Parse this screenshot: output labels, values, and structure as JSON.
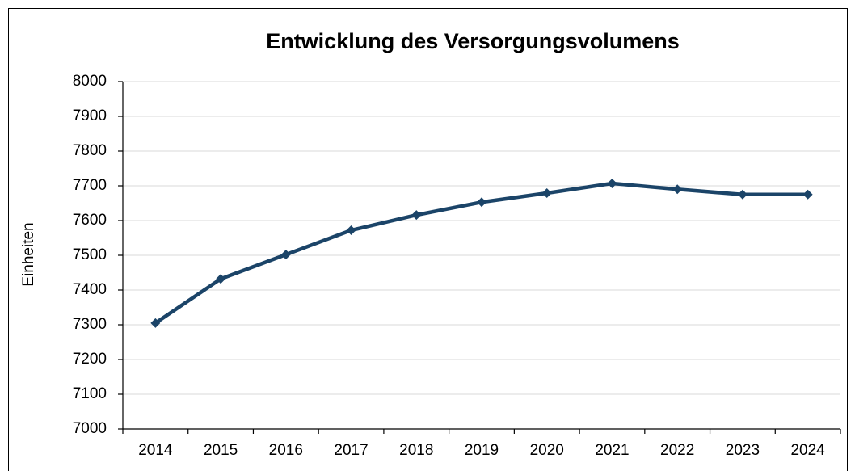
{
  "chart_data": {
    "type": "line",
    "title": "Entwicklung des Versorgungsvolumens",
    "ylabel": "Einheiten",
    "categories": [
      "2014",
      "2015",
      "2016",
      "2017",
      "2018",
      "2019",
      "2020",
      "2021",
      "2022",
      "2023",
      "2024"
    ],
    "series": [
      {
        "name": "Versorgungsvolumen",
        "color": "#1b4468",
        "values": [
          7305,
          7432,
          7502,
          7572,
          7616,
          7653,
          7679,
          7707,
          7690,
          7675,
          7675
        ]
      }
    ],
    "ylim": [
      7000,
      8000
    ],
    "yticks": [
      7000,
      7100,
      7200,
      7300,
      7400,
      7500,
      7600,
      7700,
      7800,
      7900,
      8000
    ],
    "grid": true,
    "legend": false
  }
}
